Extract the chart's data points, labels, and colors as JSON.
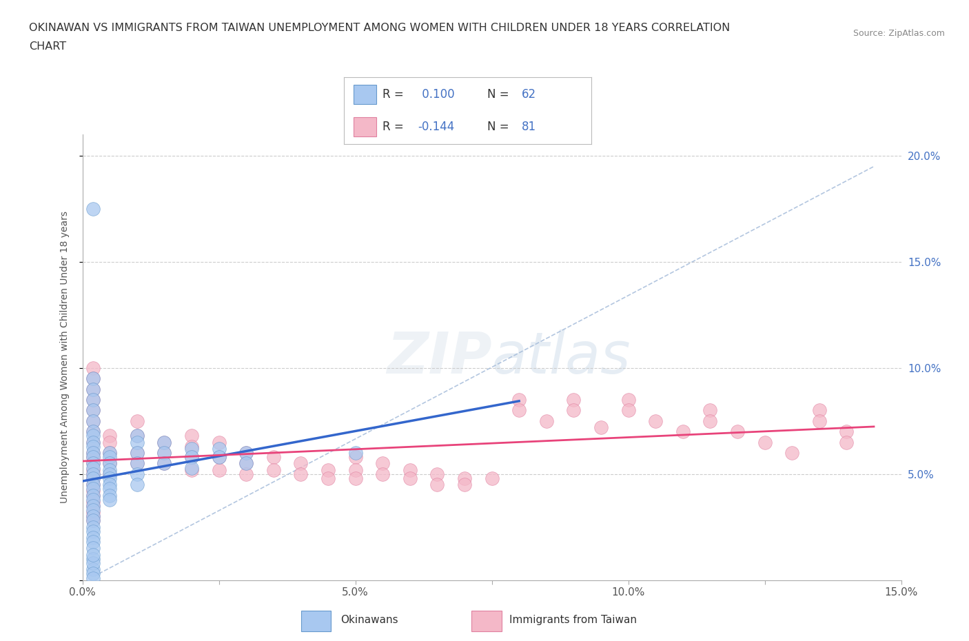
{
  "title_line1": "OKINAWAN VS IMMIGRANTS FROM TAIWAN UNEMPLOYMENT AMONG WOMEN WITH CHILDREN UNDER 18 YEARS CORRELATION",
  "title_line2": "CHART",
  "source": "Source: ZipAtlas.com",
  "ylabel": "Unemployment Among Women with Children Under 18 years",
  "xlim": [
    0.0,
    0.15
  ],
  "ylim": [
    0.0,
    0.21
  ],
  "xticks": [
    0.0,
    0.025,
    0.05,
    0.075,
    0.1,
    0.125,
    0.15
  ],
  "xticklabels": [
    "0.0%",
    "",
    "5.0%",
    "",
    "10.0%",
    "",
    "15.0%"
  ],
  "yticks_right": [
    0.05,
    0.1,
    0.15,
    0.2
  ],
  "ytick_labels_right": [
    "5.0%",
    "10.0%",
    "15.0%",
    "20.0%"
  ],
  "R_okinawan": 0.1,
  "N_okinawan": 62,
  "R_taiwan": -0.144,
  "N_taiwan": 81,
  "color_okinawan_fill": "#A8C8F0",
  "color_okinawan_edge": "#6699CC",
  "color_taiwan_fill": "#F4B8C8",
  "color_taiwan_edge": "#E080A0",
  "color_trend_okinawan": "#3366CC",
  "color_trend_taiwan": "#E8437A",
  "color_diag": "#A0B8D8",
  "background_color": "#FFFFFF",
  "okinawan_x": [
    0.002,
    0.002,
    0.002,
    0.002,
    0.002,
    0.002,
    0.002,
    0.002,
    0.002,
    0.002,
    0.002,
    0.002,
    0.002,
    0.002,
    0.002,
    0.002,
    0.002,
    0.002,
    0.002,
    0.002,
    0.002,
    0.002,
    0.002,
    0.002,
    0.002,
    0.002,
    0.002,
    0.002,
    0.002,
    0.002,
    0.005,
    0.005,
    0.005,
    0.005,
    0.005,
    0.005,
    0.005,
    0.005,
    0.005,
    0.005,
    0.01,
    0.01,
    0.01,
    0.01,
    0.01,
    0.01,
    0.015,
    0.015,
    0.015,
    0.02,
    0.02,
    0.02,
    0.025,
    0.025,
    0.03,
    0.03,
    0.002,
    0.002,
    0.05,
    0.002,
    0.002,
    0.002
  ],
  "okinawan_y": [
    0.175,
    0.095,
    0.09,
    0.085,
    0.08,
    0.075,
    0.07,
    0.068,
    0.065,
    0.063,
    0.06,
    0.058,
    0.055,
    0.053,
    0.05,
    0.048,
    0.045,
    0.043,
    0.04,
    0.038,
    0.035,
    0.033,
    0.03,
    0.028,
    0.025,
    0.023,
    0.02,
    0.018,
    0.015,
    0.01,
    0.06,
    0.058,
    0.055,
    0.052,
    0.05,
    0.048,
    0.045,
    0.043,
    0.04,
    0.038,
    0.068,
    0.065,
    0.06,
    0.055,
    0.05,
    0.045,
    0.065,
    0.06,
    0.055,
    0.062,
    0.058,
    0.053,
    0.062,
    0.058,
    0.06,
    0.055,
    0.005,
    0.008,
    0.06,
    0.012,
    0.003,
    0.001
  ],
  "taiwan_x": [
    0.002,
    0.002,
    0.002,
    0.002,
    0.002,
    0.002,
    0.002,
    0.002,
    0.002,
    0.002,
    0.002,
    0.002,
    0.002,
    0.002,
    0.002,
    0.002,
    0.002,
    0.002,
    0.002,
    0.002,
    0.005,
    0.005,
    0.005,
    0.005,
    0.005,
    0.01,
    0.01,
    0.01,
    0.01,
    0.015,
    0.015,
    0.015,
    0.02,
    0.02,
    0.02,
    0.02,
    0.025,
    0.025,
    0.025,
    0.03,
    0.03,
    0.03,
    0.035,
    0.035,
    0.04,
    0.04,
    0.045,
    0.045,
    0.05,
    0.05,
    0.05,
    0.055,
    0.055,
    0.06,
    0.06,
    0.065,
    0.065,
    0.07,
    0.07,
    0.075,
    0.08,
    0.08,
    0.085,
    0.09,
    0.09,
    0.095,
    0.1,
    0.1,
    0.105,
    0.11,
    0.115,
    0.115,
    0.12,
    0.125,
    0.13,
    0.135,
    0.135,
    0.14,
    0.14,
    0.002,
    0.002
  ],
  "taiwan_y": [
    0.1,
    0.095,
    0.09,
    0.085,
    0.08,
    0.075,
    0.07,
    0.065,
    0.06,
    0.058,
    0.055,
    0.052,
    0.05,
    0.048,
    0.045,
    0.042,
    0.04,
    0.037,
    0.035,
    0.032,
    0.068,
    0.065,
    0.06,
    0.055,
    0.05,
    0.075,
    0.068,
    0.06,
    0.055,
    0.065,
    0.06,
    0.055,
    0.068,
    0.063,
    0.058,
    0.052,
    0.065,
    0.058,
    0.052,
    0.06,
    0.055,
    0.05,
    0.058,
    0.052,
    0.055,
    0.05,
    0.052,
    0.048,
    0.058,
    0.052,
    0.048,
    0.055,
    0.05,
    0.052,
    0.048,
    0.05,
    0.045,
    0.048,
    0.045,
    0.048,
    0.085,
    0.08,
    0.075,
    0.085,
    0.08,
    0.072,
    0.085,
    0.08,
    0.075,
    0.07,
    0.08,
    0.075,
    0.07,
    0.065,
    0.06,
    0.08,
    0.075,
    0.07,
    0.065,
    0.03,
    0.028
  ]
}
